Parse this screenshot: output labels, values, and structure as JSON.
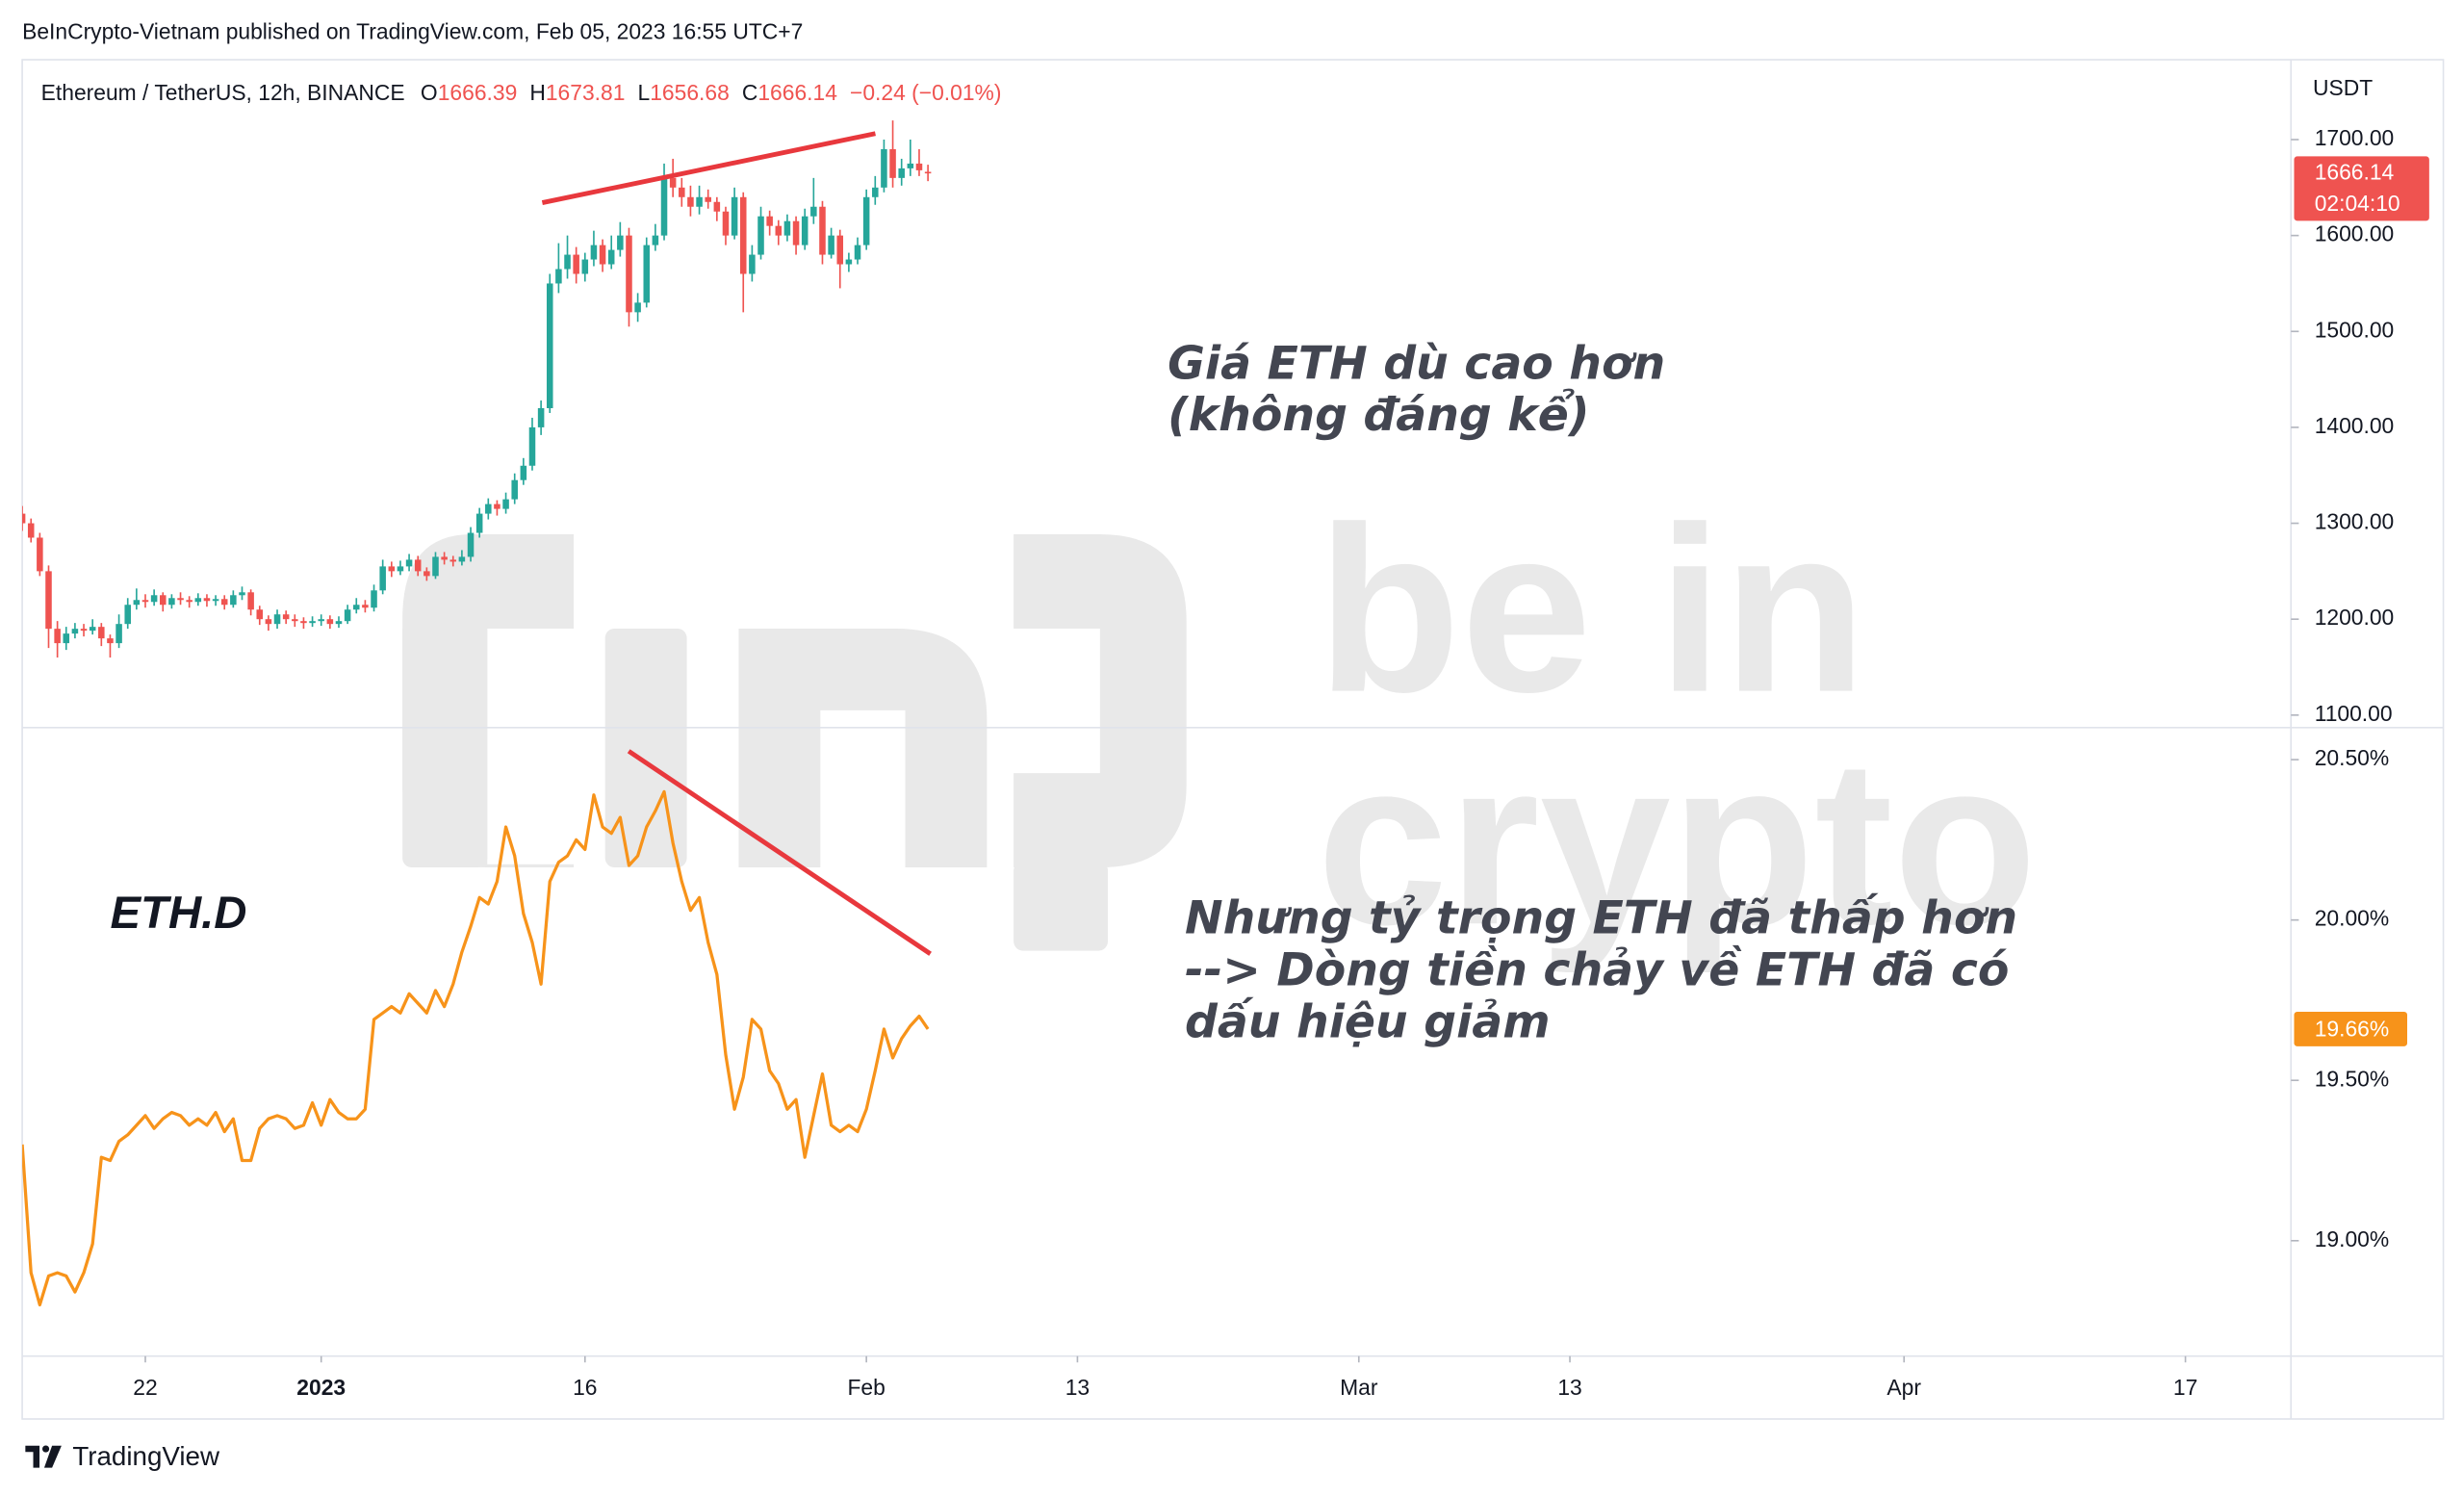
{
  "header": "BeInCrypto-Vietnam published on TradingView.com, Feb 05, 2023 16:55 UTC+7",
  "footer": "TradingView",
  "watermark": [
    "be in",
    "crypto"
  ],
  "chart_data": [
    {
      "type": "candlestick",
      "title": "Ethereum / TetherUS, 12h, BINANCE",
      "ohlc_labels": [
        "O",
        "H",
        "L",
        "C"
      ],
      "change": "−0.24 (−0.01%)",
      "unit": "USDT",
      "countdown": "02:04:10",
      "up_color": "#26a69a",
      "down_color": "#ef5350",
      "annotations": [
        "Giá ETH dù cao hơn",
        "(không đáng kể)"
      ],
      "xlim": [
        0,
        258
      ],
      "ylim": [
        1087,
        1780
      ],
      "yticks": [
        {
          "value": 1100,
          "label": "1100.00"
        },
        {
          "value": 1200,
          "label": "1200.00"
        },
        {
          "value": 1300,
          "label": "1300.00"
        },
        {
          "value": 1400,
          "label": "1400.00"
        },
        {
          "value": 1500,
          "label": "1500.00"
        },
        {
          "value": 1600,
          "label": "1600.00"
        },
        {
          "value": 1700,
          "label": "1700.00"
        }
      ],
      "x": [
        0,
        1,
        2,
        3,
        4,
        5,
        6,
        7,
        8,
        9,
        10,
        11,
        12,
        13,
        14,
        15,
        16,
        17,
        18,
        19,
        20,
        21,
        22,
        23,
        24,
        25,
        26,
        27,
        28,
        29,
        30,
        31,
        32,
        33,
        34,
        35,
        36,
        37,
        38,
        39,
        40,
        41,
        42,
        43,
        44,
        45,
        46,
        47,
        48,
        49,
        50,
        51,
        52,
        53,
        54,
        55,
        56,
        57,
        58,
        59,
        60,
        61,
        62,
        63,
        64,
        65,
        66,
        67,
        68,
        69,
        70,
        71,
        72,
        73,
        74,
        75,
        76,
        77,
        78,
        79,
        80,
        81,
        82,
        83,
        84,
        85,
        86,
        87,
        88,
        89,
        90,
        91,
        92,
        93,
        94,
        95,
        96,
        97,
        98,
        99,
        100,
        101,
        102,
        103
      ],
      "candles": [
        [
          1310,
          1318,
          1292,
          1300
        ],
        [
          1300,
          1305,
          1280,
          1285
        ],
        [
          1285,
          1290,
          1245,
          1250
        ],
        [
          1250,
          1256,
          1170,
          1190
        ],
        [
          1190,
          1198,
          1160,
          1175
        ],
        [
          1175,
          1192,
          1168,
          1185
        ],
        [
          1185,
          1196,
          1180,
          1190
        ],
        [
          1190,
          1195,
          1182,
          1188
        ],
        [
          1188,
          1200,
          1184,
          1192
        ],
        [
          1192,
          1196,
          1172,
          1180
        ],
        [
          1180,
          1184,
          1160,
          1175
        ],
        [
          1175,
          1205,
          1170,
          1195
        ],
        [
          1195,
          1222,
          1190,
          1215
        ],
        [
          1215,
          1232,
          1210,
          1220
        ],
        [
          1220,
          1226,
          1212,
          1218
        ],
        [
          1218,
          1231,
          1214,
          1225
        ],
        [
          1225,
          1228,
          1208,
          1215
        ],
        [
          1215,
          1226,
          1211,
          1222
        ],
        [
          1222,
          1228,
          1215,
          1220
        ],
        [
          1220,
          1224,
          1212,
          1218
        ],
        [
          1218,
          1227,
          1214,
          1222
        ],
        [
          1222,
          1226,
          1213,
          1219
        ],
        [
          1219,
          1225,
          1214,
          1221
        ],
        [
          1221,
          1225,
          1210,
          1215
        ],
        [
          1215,
          1230,
          1212,
          1225
        ],
        [
          1225,
          1234,
          1220,
          1228
        ],
        [
          1228,
          1231,
          1204,
          1210
        ],
        [
          1210,
          1214,
          1194,
          1200
        ],
        [
          1200,
          1204,
          1188,
          1195
        ],
        [
          1195,
          1210,
          1190,
          1205
        ],
        [
          1205,
          1209,
          1195,
          1200
        ],
        [
          1200,
          1205,
          1192,
          1198
        ],
        [
          1198,
          1202,
          1190,
          1196
        ],
        [
          1196,
          1203,
          1192,
          1198
        ],
        [
          1198,
          1205,
          1193,
          1200
        ],
        [
          1200,
          1204,
          1190,
          1195
        ],
        [
          1195,
          1203,
          1191,
          1198
        ],
        [
          1198,
          1215,
          1195,
          1210
        ],
        [
          1210,
          1222,
          1206,
          1215
        ],
        [
          1215,
          1220,
          1207,
          1212
        ],
        [
          1212,
          1236,
          1208,
          1230
        ],
        [
          1230,
          1262,
          1226,
          1255
        ],
        [
          1255,
          1260,
          1244,
          1250
        ],
        [
          1250,
          1261,
          1246,
          1255
        ],
        [
          1255,
          1268,
          1250,
          1262
        ],
        [
          1262,
          1266,
          1245,
          1250
        ],
        [
          1250,
          1254,
          1240,
          1245
        ],
        [
          1245,
          1270,
          1242,
          1265
        ],
        [
          1265,
          1270,
          1257,
          1262
        ],
        [
          1262,
          1266,
          1255,
          1260
        ],
        [
          1260,
          1272,
          1256,
          1265
        ],
        [
          1265,
          1296,
          1260,
          1290
        ],
        [
          1290,
          1316,
          1285,
          1310
        ],
        [
          1310,
          1326,
          1304,
          1320
        ],
        [
          1320,
          1324,
          1308,
          1315
        ],
        [
          1315,
          1332,
          1310,
          1325
        ],
        [
          1325,
          1352,
          1320,
          1345
        ],
        [
          1345,
          1368,
          1340,
          1360
        ],
        [
          1360,
          1410,
          1355,
          1400
        ],
        [
          1400,
          1428,
          1392,
          1420
        ],
        [
          1420,
          1560,
          1415,
          1550
        ],
        [
          1550,
          1592,
          1540,
          1565
        ],
        [
          1565,
          1600,
          1555,
          1580
        ],
        [
          1580,
          1588,
          1550,
          1560
        ],
        [
          1560,
          1582,
          1552,
          1575
        ],
        [
          1575,
          1605,
          1568,
          1590
        ],
        [
          1590,
          1596,
          1562,
          1570
        ],
        [
          1570,
          1600,
          1565,
          1585
        ],
        [
          1585,
          1614,
          1578,
          1600
        ],
        [
          1600,
          1608,
          1505,
          1520
        ],
        [
          1520,
          1540,
          1510,
          1530
        ],
        [
          1530,
          1598,
          1525,
          1590
        ],
        [
          1590,
          1612,
          1584,
          1600
        ],
        [
          1600,
          1675,
          1595,
          1660
        ],
        [
          1660,
          1680,
          1640,
          1650
        ],
        [
          1650,
          1660,
          1630,
          1640
        ],
        [
          1640,
          1652,
          1620,
          1630
        ],
        [
          1630,
          1652,
          1622,
          1640
        ],
        [
          1640,
          1648,
          1628,
          1635
        ],
        [
          1635,
          1640,
          1615,
          1625
        ],
        [
          1625,
          1630,
          1590,
          1600
        ],
        [
          1600,
          1650,
          1596,
          1640
        ],
        [
          1640,
          1645,
          1520,
          1560
        ],
        [
          1560,
          1590,
          1552,
          1580
        ],
        [
          1580,
          1630,
          1575,
          1620
        ],
        [
          1620,
          1626,
          1600,
          1610
        ],
        [
          1610,
          1616,
          1590,
          1600
        ],
        [
          1600,
          1622,
          1594,
          1615
        ],
        [
          1615,
          1620,
          1580,
          1590
        ],
        [
          1590,
          1628,
          1585,
          1620
        ],
        [
          1620,
          1660,
          1612,
          1630
        ],
        [
          1630,
          1636,
          1570,
          1580
        ],
        [
          1580,
          1608,
          1576,
          1600
        ],
        [
          1600,
          1606,
          1545,
          1570
        ],
        [
          1570,
          1582,
          1562,
          1575
        ],
        [
          1575,
          1598,
          1570,
          1590
        ],
        [
          1590,
          1648,
          1585,
          1640
        ],
        [
          1640,
          1662,
          1632,
          1650
        ],
        [
          1650,
          1700,
          1645,
          1690
        ],
        [
          1690,
          1720,
          1650,
          1660
        ],
        [
          1660,
          1680,
          1652,
          1670
        ],
        [
          1670,
          1700,
          1662,
          1675
        ],
        [
          1675,
          1690,
          1662,
          1668
        ],
        [
          1666.39,
          1673.81,
          1656.68,
          1666.14
        ]
      ]
    },
    {
      "type": "line",
      "annotations": [
        "Nhưng tỷ trọng ETH đã thấp hơn",
        "--> Dòng tiền chảy về ETH đã có",
        "dấu hiệu giảm"
      ],
      "xlim": [
        0,
        258
      ],
      "xticks": [
        {
          "value": 14,
          "label": "22"
        },
        {
          "value": 34,
          "label": "2023"
        },
        {
          "value": 64,
          "label": "16"
        },
        {
          "value": 96,
          "label": "Feb"
        },
        {
          "value": 120,
          "label": "13"
        },
        {
          "value": 152,
          "label": "Mar"
        },
        {
          "value": 176,
          "label": "13"
        },
        {
          "value": 214,
          "label": "Apr"
        },
        {
          "value": 246,
          "label": "17"
        }
      ],
      "ylim": [
        18.64,
        20.6
      ],
      "yticks": [
        {
          "value": 19,
          "label": "19.00%"
        },
        {
          "value": 19.5,
          "label": "19.50%"
        },
        {
          "value": 20,
          "label": "20.00%"
        },
        {
          "value": 20.5,
          "label": "20.50%"
        }
      ],
      "x": [
        0,
        1,
        2,
        3,
        4,
        5,
        6,
        7,
        8,
        9,
        10,
        11,
        12,
        13,
        14,
        15,
        16,
        17,
        18,
        19,
        20,
        21,
        22,
        23,
        24,
        25,
        26,
        27,
        28,
        29,
        30,
        31,
        32,
        33,
        34,
        35,
        36,
        37,
        38,
        39,
        40,
        41,
        42,
        43,
        44,
        45,
        46,
        47,
        48,
        49,
        50,
        51,
        52,
        53,
        54,
        55,
        56,
        57,
        58,
        59,
        60,
        61,
        62,
        63,
        64,
        65,
        66,
        67,
        68,
        69,
        70,
        71,
        72,
        73,
        74,
        75,
        76,
        77,
        78,
        79,
        80,
        81,
        82,
        83,
        84,
        85,
        86,
        87,
        88,
        89,
        90,
        91,
        92,
        93,
        94,
        95,
        96,
        97,
        98,
        99,
        100,
        101,
        102,
        103
      ],
      "series": [
        {
          "name": "ETH.D",
          "color": "#f7931a",
          "last_label": "19.66%",
          "values": [
            19.3,
            18.9,
            18.8,
            18.89,
            18.9,
            18.89,
            18.84,
            18.9,
            18.99,
            19.26,
            19.25,
            19.31,
            19.33,
            19.36,
            19.39,
            19.35,
            19.38,
            19.4,
            19.39,
            19.36,
            19.38,
            19.36,
            19.4,
            19.34,
            19.38,
            19.25,
            19.25,
            19.35,
            19.38,
            19.39,
            19.38,
            19.35,
            19.36,
            19.43,
            19.36,
            19.44,
            19.4,
            19.38,
            19.38,
            19.41,
            19.69,
            19.71,
            19.73,
            19.71,
            19.77,
            19.74,
            19.71,
            19.78,
            19.73,
            19.8,
            19.9,
            19.98,
            20.07,
            20.05,
            20.12,
            20.29,
            20.2,
            20.02,
            19.93,
            19.8,
            20.12,
            20.18,
            20.2,
            20.25,
            20.22,
            20.39,
            20.29,
            20.27,
            20.32,
            20.17,
            20.2,
            20.29,
            20.34,
            20.4,
            20.24,
            20.12,
            20.03,
            20.07,
            19.93,
            19.83,
            19.58,
            19.41,
            19.51,
            19.69,
            19.66,
            19.53,
            19.49,
            19.41,
            19.44,
            19.26,
            19.39,
            19.52,
            19.36,
            19.34,
            19.36,
            19.34,
            19.41,
            19.53,
            19.66,
            19.57,
            19.63,
            19.67,
            19.7,
            19.66
          ]
        }
      ]
    }
  ]
}
